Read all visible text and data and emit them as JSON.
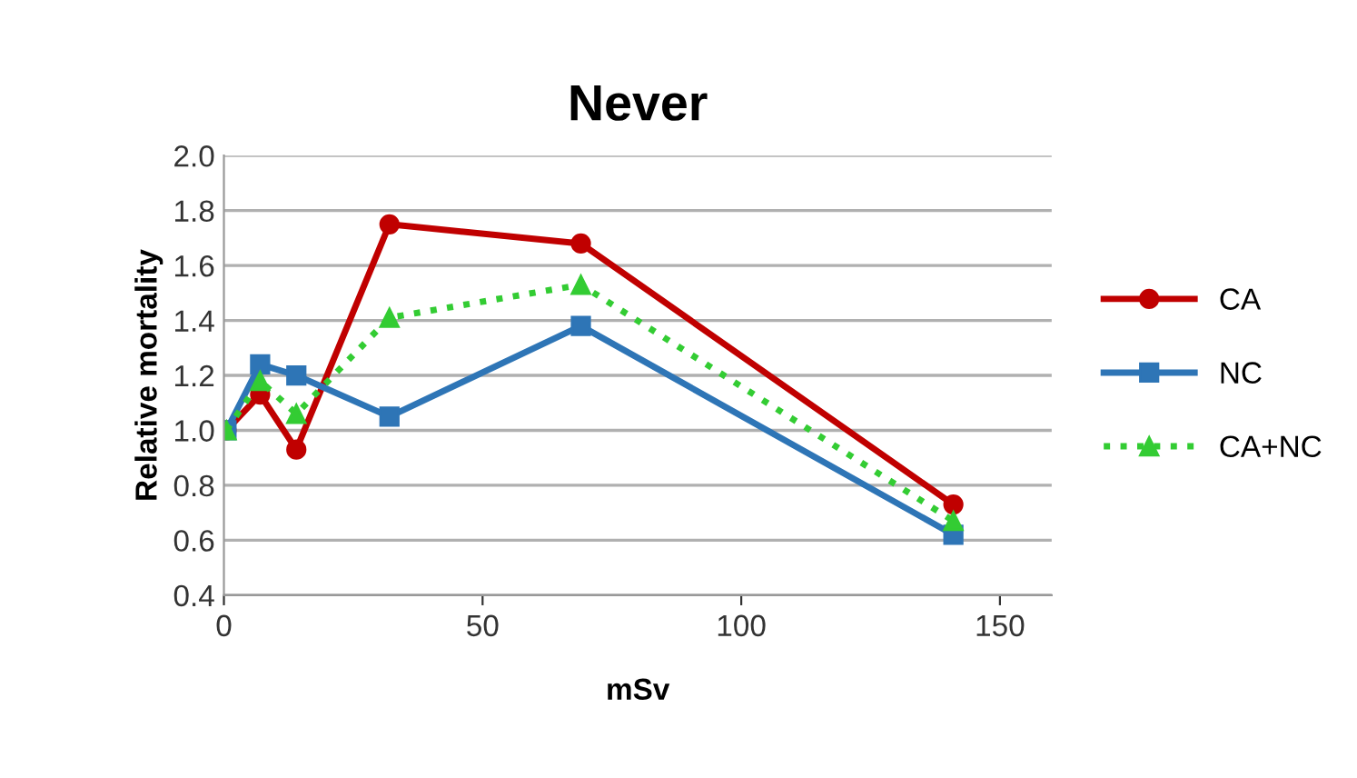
{
  "chart_data": {
    "type": "line",
    "title": "Never",
    "xlabel": "mSv",
    "ylabel": "Relative mortality",
    "xlim": [
      0,
      160
    ],
    "xticks": [
      0,
      50,
      100,
      150
    ],
    "ylim": [
      0.4,
      2.0
    ],
    "yticks": [
      {
        "value": 0.4,
        "label": "0.4"
      },
      {
        "value": 0.6,
        "label": "0.6"
      },
      {
        "value": 0.8,
        "label": "0.8"
      },
      {
        "value": 1.0,
        "label": "1.0"
      },
      {
        "value": 1.2,
        "label": "1.2"
      },
      {
        "value": 1.4,
        "label": "1.4"
      },
      {
        "value": 1.6,
        "label": "1.6"
      },
      {
        "value": 1.8,
        "label": "1.8"
      },
      {
        "value": 2.0,
        "label": "2.0"
      }
    ],
    "grid": "y",
    "legend": "right",
    "x": [
      0.5,
      7,
      14,
      32,
      69,
      141
    ],
    "series": [
      {
        "name": "CA",
        "color": "#c00000",
        "marker": "circle",
        "line_style": "solid",
        "values": [
          1.0,
          1.13,
          0.93,
          1.75,
          1.68,
          0.73
        ]
      },
      {
        "name": "NC",
        "color": "#2e75b6",
        "marker": "square",
        "line_style": "solid",
        "values": [
          1.0,
          1.24,
          1.2,
          1.05,
          1.38,
          0.62
        ]
      },
      {
        "name": "CA+NC",
        "color": "#33cc33",
        "marker": "triangle",
        "line_style": "dotted",
        "values": [
          1.0,
          1.18,
          1.06,
          1.41,
          1.53,
          0.67
        ]
      }
    ]
  }
}
